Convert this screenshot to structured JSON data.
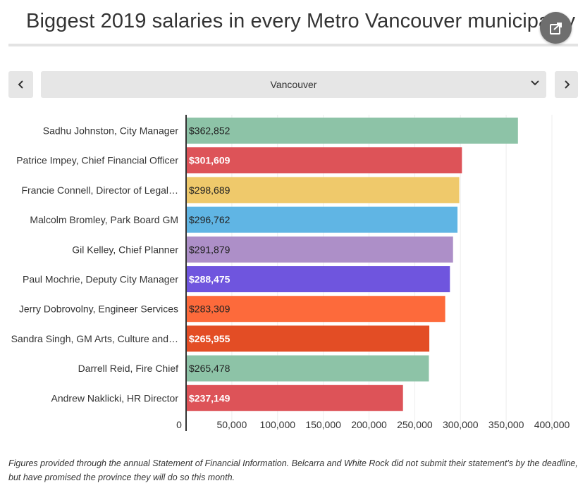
{
  "header": {
    "title": "Biggest 2019 salaries in every Metro Vancouver municipality"
  },
  "controls": {
    "prev_icon": "chevron-left-icon",
    "next_icon": "chevron-right-icon",
    "share_icon": "share-icon",
    "selected_municipality": "Vancouver"
  },
  "chart_data": {
    "type": "bar",
    "orientation": "horizontal",
    "title": "",
    "xlabel": "",
    "ylabel": "",
    "xlim": [
      0,
      400000
    ],
    "categories": [
      "Sadhu Johnston, City Manager",
      "Patrice Impey, Chief Financial Officer",
      "Francie Connell, Director of Legal…",
      "Malcolm Bromley, Park Board GM",
      "Gil Kelley, Chief Planner",
      "Paul Mochrie, Deputy City Manager",
      "Jerry Dobrovolny, Engineer Services",
      "Sandra Singh, GM Arts, Culture and…",
      "Darrell Reid, Fire Chief",
      "Andrew Naklicki, HR Director"
    ],
    "values": [
      362852,
      301609,
      298689,
      296762,
      291879,
      288475,
      283309,
      265955,
      265478,
      237149
    ],
    "value_labels": [
      "$362,852",
      "$301,609",
      "$298,689",
      "$296,762",
      "$291,879",
      "$288,475",
      "$283,309",
      "$265,955",
      "$265,478",
      "$237,149"
    ],
    "colors": [
      "#8dc3a7",
      "#dd5358",
      "#efc96b",
      "#60b5e4",
      "#ad8fc8",
      "#6f55de",
      "#fd6a3b",
      "#e34d25",
      "#8dc3a7",
      "#dd5358"
    ],
    "label_colors": [
      "#222222",
      "#ffffff",
      "#222222",
      "#222222",
      "#222222",
      "#ffffff",
      "#222222",
      "#ffffff",
      "#222222",
      "#ffffff"
    ],
    "x_ticks": [
      0,
      50000,
      100000,
      150000,
      200000,
      250000,
      300000,
      350000,
      400000
    ],
    "x_tick_labels": [
      "0",
      "50,000",
      "100,000",
      "150,000",
      "200,000",
      "250,000",
      "300,000",
      "350,000",
      "400,000"
    ],
    "grid": true,
    "gridline_color": "#eeeeee",
    "axis_color": "#333333"
  },
  "footnote": "Figures provided through the annual Statement of Financial Information. Belcarra and White Rock did not submit their statement's by the deadline, but have promised the province they will do so this month."
}
